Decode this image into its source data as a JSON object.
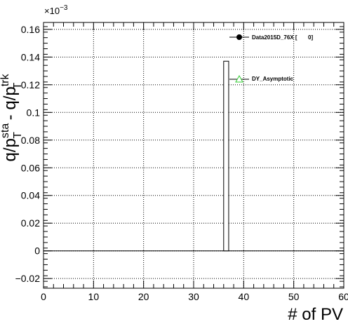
{
  "chart_data": {
    "type": "bar",
    "title": "",
    "xlabel": "# of PV",
    "ylabel_main": "q/p",
    "ylabel_sta": "sta",
    "ylabel_T1": "T",
    "ylabel_minus": " - q/p",
    "ylabel_trk": "trk",
    "ylabel_T2": "T",
    "y_exponent_base": "×10",
    "y_exponent_power": "−3",
    "xlim": [
      0,
      60
    ],
    "ylim": [
      -0.027,
      0.165
    ],
    "x_ticks": [
      0,
      10,
      20,
      30,
      40,
      50,
      60
    ],
    "x_tick_labels": [
      "0",
      "10",
      "20",
      "30",
      "40",
      "50",
      "60"
    ],
    "y_ticks": [
      -0.02,
      0,
      0.02,
      0.04,
      0.06,
      0.08,
      0.1,
      0.12,
      0.14,
      0.16
    ],
    "y_tick_labels": [
      "−0.02",
      "0",
      "0.02",
      "0.04",
      "0.06",
      "0.08",
      "0.1",
      "0.12",
      "0.14",
      "0.16"
    ],
    "grid": true,
    "legend_position": "top-right",
    "series": [
      {
        "name": "Data2015D_76X [       0]",
        "marker": "filled-circle",
        "color": "#000000",
        "points": []
      },
      {
        "name": "DY_Asymptotic",
        "marker": "open-triangle",
        "color": "#33cc33",
        "bars": [
          {
            "x0": 36,
            "x1": 37,
            "value": 0.137
          }
        ]
      }
    ]
  }
}
